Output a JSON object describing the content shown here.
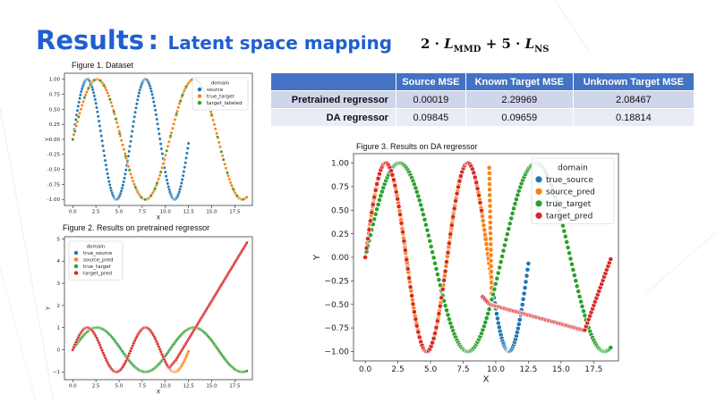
{
  "slide": {
    "title": "Results",
    "separator": ":",
    "subtitle": "Latent space mapping",
    "formula": {
      "coef1": "2",
      "term1": "L",
      "sub1": "MMD",
      "coef2": "5",
      "term2": "L",
      "sub2": "NS"
    }
  },
  "table": {
    "headers": [
      "",
      "Source MSE",
      "Known Target MSE",
      "Unknown Target MSE"
    ],
    "rows": [
      {
        "label": "Pretrained regressor",
        "values": [
          "0.00019",
          "2.29969",
          "2.08467"
        ]
      },
      {
        "label": "DA regressor",
        "values": [
          "0.09845",
          "0.09659",
          "0.18814"
        ]
      }
    ]
  },
  "figures": {
    "fig1_caption": "Figure 1. Dataset",
    "fig2_caption": "Figure 2. Results  on pretrained regressor",
    "fig3_caption": "Figure 3. Results  on DA regressor"
  },
  "colors": {
    "title": "#1f5fd1",
    "header": "#4472c4",
    "blue": "#1f77b4",
    "orange": "#ff7f0e",
    "green": "#2ca02c",
    "red": "#d62728"
  },
  "chart_data": [
    {
      "type": "scatter",
      "title": "",
      "xlabel": "X",
      "ylabel": "Y",
      "xlim": [
        -0.9,
        19.4
      ],
      "ylim": [
        -1.1,
        1.1
      ],
      "xticks": [
        0.0,
        2.5,
        5.0,
        7.5,
        10.0,
        12.5,
        15.0,
        17.5
      ],
      "xtick_labels": [
        "0.0",
        "2.5",
        "5.0",
        "7.5",
        "10.0",
        "12.5",
        "15.0",
        "17.5"
      ],
      "yticks": [
        1.0,
        0.75,
        0.5,
        0.25,
        0.0,
        -0.25,
        -0.5,
        -0.75,
        -1.0
      ],
      "ytick_labels": [
        "1.00",
        "0.75",
        "0.50",
        "0.25",
        "0.00",
        "-0.25",
        "-0.50",
        "-0.75",
        "-1.00"
      ],
      "legend": {
        "title": "domain",
        "placement": "top-right",
        "entries": [
          "source",
          "true_target",
          "target_labeled"
        ]
      },
      "series": [
        {
          "name": "source",
          "color": "#1f77b4",
          "fn": "sin",
          "freq": 1.0,
          "x_range": [
            0,
            12.5
          ]
        },
        {
          "name": "true_target",
          "color": "#ff7f0e",
          "fn": "sin",
          "freq": 0.6,
          "x_range": [
            0,
            18.8
          ]
        },
        {
          "name": "target_labeled",
          "color": "#2ca02c",
          "fn": "sin",
          "freq": 0.6,
          "x_range": [
            0,
            18.8
          ],
          "sparse": true
        }
      ]
    },
    {
      "type": "scatter",
      "title": "",
      "xlabel": "X",
      "ylabel": "Y",
      "xlim": [
        -0.9,
        19.4
      ],
      "ylim": [
        -1.35,
        5.1
      ],
      "xticks": [
        0.0,
        2.5,
        5.0,
        7.5,
        10.0,
        12.5,
        15.0,
        17.5
      ],
      "xtick_labels": [
        "0.0",
        "2.5",
        "5.0",
        "7.5",
        "10.0",
        "12.5",
        "15.0",
        "17.5"
      ],
      "yticks": [
        5,
        4,
        3,
        2,
        1,
        0,
        -1
      ],
      "ytick_labels": [
        "5",
        "4",
        "3",
        "2",
        "1",
        "0",
        "−1"
      ],
      "legend": {
        "title": "domain",
        "placement": "top-left",
        "entries": [
          "true_source",
          "source_pred",
          "true_target",
          "target_pred"
        ]
      },
      "series": [
        {
          "name": "true_source",
          "color": "#1f77b4",
          "fn": "sin",
          "freq": 1.0,
          "x_range": [
            0,
            12.5
          ]
        },
        {
          "name": "source_pred",
          "color": "#ff7f0e",
          "fn": "sin",
          "freq": 1.0,
          "x_range": [
            0,
            12.5
          ]
        },
        {
          "name": "true_target",
          "color": "#2ca02c",
          "fn": "sin",
          "freq": 0.6,
          "x_range": [
            0,
            18.8
          ]
        },
        {
          "name": "target_pred",
          "color": "#d62728",
          "fn": "fig2pred",
          "x_range": [
            0,
            18.8
          ]
        }
      ]
    },
    {
      "type": "scatter",
      "title": "",
      "xlabel": "X",
      "ylabel": "Y",
      "xlim": [
        -0.9,
        19.4
      ],
      "ylim": [
        -1.1,
        1.1
      ],
      "xticks": [
        0.0,
        2.5,
        5.0,
        7.5,
        10.0,
        12.5,
        15.0,
        17.5
      ],
      "xtick_labels": [
        "0.0",
        "2.5",
        "5.0",
        "7.5",
        "10.0",
        "12.5",
        "15.0",
        "17.5"
      ],
      "yticks": [
        1.0,
        0.75,
        0.5,
        0.25,
        0.0,
        -0.25,
        -0.5,
        -0.75,
        -1.0
      ],
      "ytick_labels": [
        "1.00",
        "0.75",
        "0.50",
        "0.25",
        "0.00",
        "−0.25",
        "−0.50",
        "−0.75",
        "−1.00"
      ],
      "legend": {
        "title": "domain",
        "placement": "top-right",
        "entries": [
          "true_source",
          "source_pred",
          "true_target",
          "target_pred"
        ]
      },
      "series": [
        {
          "name": "true_source",
          "color": "#1f77b4",
          "fn": "sin",
          "freq": 1.0,
          "x_range": [
            0,
            12.5
          ]
        },
        {
          "name": "source_pred",
          "color": "#ff7f0e",
          "fn": "sin",
          "freq": 1.0,
          "x_range": [
            0,
            9.8
          ],
          "extra": "orangeLate"
        },
        {
          "name": "true_target",
          "color": "#2ca02c",
          "fn": "sin",
          "freq": 0.6,
          "x_range": [
            0,
            18.8
          ]
        },
        {
          "name": "target_pred",
          "color": "#d62728",
          "fn": "fig3pred",
          "x_range": [
            0,
            18.8
          ]
        }
      ]
    }
  ]
}
